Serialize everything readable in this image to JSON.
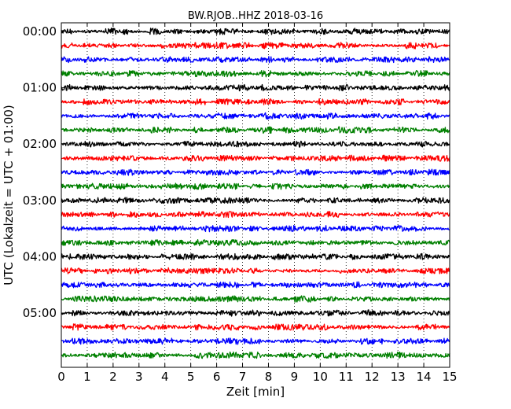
{
  "chart_data": {
    "type": "line",
    "title": "BW.RJOB..HHZ 2018-03-16",
    "xlabel": "Zeit  [min]",
    "ylabel": "UTC (Lokalzeit = UTC + 01:00)",
    "xlim": [
      0,
      15
    ],
    "xticks": [
      0,
      1,
      2,
      3,
      4,
      5,
      6,
      7,
      8,
      9,
      10,
      11,
      12,
      13,
      14,
      15
    ],
    "xtick_labels": [
      "0",
      "1",
      "2",
      "3",
      "4",
      "5",
      "6",
      "7",
      "8",
      "9",
      "10",
      "11",
      "12",
      "13",
      "14",
      "15"
    ],
    "y_tick_labels": [
      "00:00",
      "01:00",
      "02:00",
      "03:00",
      "04:00",
      "05:00"
    ],
    "trace_minutes": 15,
    "trace_count": 24,
    "trace_colors": [
      "#000000",
      "#ff0000",
      "#0000ff",
      "#008000"
    ],
    "grid": "vertical-dotted",
    "legend": "none"
  }
}
